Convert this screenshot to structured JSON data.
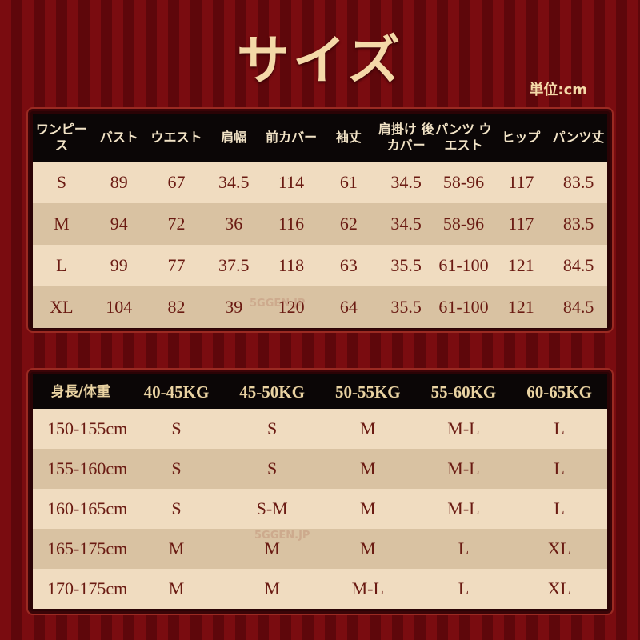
{
  "title": "サイズ",
  "unit": "単位:cm",
  "watermark": "5GGEN.JP",
  "colors": {
    "background": "#7a0c10",
    "header": "#0b0606",
    "row_light": "#f0dcc0",
    "row_dark": "#d9c2a2",
    "text": "#6a1a12",
    "title": "#f4d9a8"
  },
  "size_table": {
    "headers": [
      "ワンピース",
      "バスト",
      "ウエスト",
      "肩幅",
      "前カバー",
      "袖丈",
      "肩掛け 後カバー",
      "パンツ ウエスト",
      "ヒップ",
      "パンツ丈"
    ],
    "rows": [
      [
        "S",
        "89",
        "67",
        "34.5",
        "114",
        "61",
        "34.5",
        "58-96",
        "117",
        "83.5"
      ],
      [
        "M",
        "94",
        "72",
        "36",
        "116",
        "62",
        "34.5",
        "58-96",
        "117",
        "83.5"
      ],
      [
        "L",
        "99",
        "77",
        "37.5",
        "118",
        "63",
        "35.5",
        "61-100",
        "121",
        "84.5"
      ],
      [
        "XL",
        "104",
        "82",
        "39",
        "120",
        "64",
        "35.5",
        "61-100",
        "121",
        "84.5"
      ]
    ]
  },
  "fit_table": {
    "headers": [
      "身長/体重",
      "40-45KG",
      "45-50KG",
      "50-55KG",
      "55-60KG",
      "60-65KG"
    ],
    "rows": [
      [
        "150-155cm",
        "S",
        "S",
        "M",
        "M-L",
        "L"
      ],
      [
        "155-160cm",
        "S",
        "S",
        "M",
        "M-L",
        "L"
      ],
      [
        "160-165cm",
        "S",
        "S-M",
        "M",
        "M-L",
        "L"
      ],
      [
        "165-175cm",
        "M",
        "M",
        "M",
        "L",
        "XL"
      ],
      [
        "170-175cm",
        "M",
        "M",
        "M-L",
        "L",
        "XL"
      ]
    ]
  }
}
